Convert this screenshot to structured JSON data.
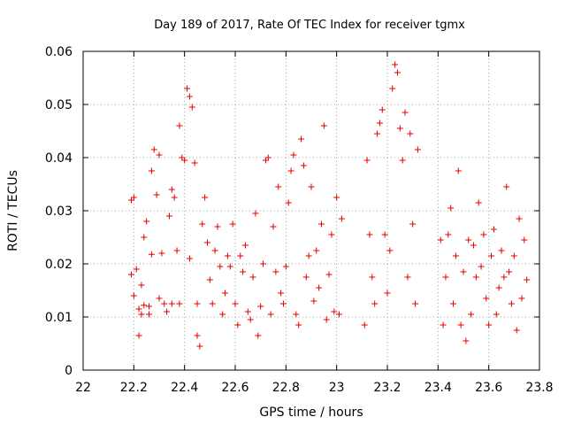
{
  "chart_data": {
    "type": "scatter",
    "title": "Day 189 of 2017, Rate Of TEC Index for receiver tgmx",
    "xlabel": "GPS time / hours",
    "ylabel": "ROTI / TECUs",
    "xlim": [
      22,
      23.8
    ],
    "ylim": [
      0,
      0.06
    ],
    "xticks": [
      "22",
      "22.2",
      "22.4",
      "22.6",
      "22.8",
      "23",
      "23.2",
      "23.4",
      "23.6",
      "23.8"
    ],
    "yticks": [
      "0",
      "0.01",
      "0.02",
      "0.03",
      "0.04",
      "0.05",
      "0.06"
    ],
    "grid": true,
    "marker": "+",
    "color": "#e00000",
    "series": [
      {
        "points": [
          [
            22.19,
            0.018
          ],
          [
            22.19,
            0.032
          ],
          [
            22.2,
            0.0325
          ],
          [
            22.2,
            0.014
          ],
          [
            22.21,
            0.019
          ],
          [
            22.22,
            0.0065
          ],
          [
            22.22,
            0.0115
          ],
          [
            22.23,
            0.0105
          ],
          [
            22.23,
            0.016
          ],
          [
            22.24,
            0.025
          ],
          [
            22.24,
            0.0122
          ],
          [
            22.25,
            0.028
          ],
          [
            22.26,
            0.012
          ],
          [
            22.26,
            0.0105
          ],
          [
            22.27,
            0.0375
          ],
          [
            22.27,
            0.0218
          ],
          [
            22.28,
            0.0415
          ],
          [
            22.29,
            0.033
          ],
          [
            22.3,
            0.0405
          ],
          [
            22.3,
            0.0135
          ],
          [
            22.31,
            0.022
          ],
          [
            22.32,
            0.0125
          ],
          [
            22.33,
            0.011
          ],
          [
            22.34,
            0.029
          ],
          [
            22.35,
            0.034
          ],
          [
            22.35,
            0.0125
          ],
          [
            22.36,
            0.0325
          ],
          [
            22.37,
            0.0225
          ],
          [
            22.38,
            0.046
          ],
          [
            22.38,
            0.0125
          ],
          [
            22.39,
            0.04
          ],
          [
            22.4,
            0.0395
          ],
          [
            22.41,
            0.053
          ],
          [
            22.42,
            0.0515
          ],
          [
            22.42,
            0.021
          ],
          [
            22.43,
            0.0495
          ],
          [
            22.44,
            0.039
          ],
          [
            22.45,
            0.0125
          ],
          [
            22.45,
            0.0065
          ],
          [
            22.46,
            0.0045
          ],
          [
            22.47,
            0.0275
          ],
          [
            22.48,
            0.0325
          ],
          [
            22.49,
            0.024
          ],
          [
            22.5,
            0.017
          ],
          [
            22.51,
            0.0125
          ],
          [
            22.52,
            0.0225
          ],
          [
            22.53,
            0.027
          ],
          [
            22.54,
            0.0195
          ],
          [
            22.55,
            0.0105
          ],
          [
            22.56,
            0.0145
          ],
          [
            22.57,
            0.0215
          ],
          [
            22.58,
            0.0195
          ],
          [
            22.59,
            0.0275
          ],
          [
            22.6,
            0.0125
          ],
          [
            22.61,
            0.0085
          ],
          [
            22.62,
            0.0215
          ],
          [
            22.63,
            0.0185
          ],
          [
            22.64,
            0.0235
          ],
          [
            22.65,
            0.011
          ],
          [
            22.66,
            0.0095
          ],
          [
            22.67,
            0.0175
          ],
          [
            22.68,
            0.0295
          ],
          [
            22.69,
            0.0065
          ],
          [
            22.7,
            0.012
          ],
          [
            22.71,
            0.02
          ],
          [
            22.72,
            0.0395
          ],
          [
            22.73,
            0.04
          ],
          [
            22.74,
            0.0105
          ],
          [
            22.75,
            0.027
          ],
          [
            22.76,
            0.0185
          ],
          [
            22.77,
            0.0345
          ],
          [
            22.78,
            0.0145
          ],
          [
            22.79,
            0.0125
          ],
          [
            22.8,
            0.0195
          ],
          [
            22.81,
            0.0315
          ],
          [
            22.82,
            0.0375
          ],
          [
            22.83,
            0.0405
          ],
          [
            22.84,
            0.0105
          ],
          [
            22.85,
            0.0085
          ],
          [
            22.86,
            0.0435
          ],
          [
            22.87,
            0.0385
          ],
          [
            22.88,
            0.0175
          ],
          [
            22.89,
            0.0215
          ],
          [
            22.9,
            0.0345
          ],
          [
            22.91,
            0.013
          ],
          [
            22.92,
            0.0225
          ],
          [
            22.93,
            0.0155
          ],
          [
            22.94,
            0.0275
          ],
          [
            22.95,
            0.046
          ],
          [
            22.96,
            0.0095
          ],
          [
            22.97,
            0.018
          ],
          [
            22.98,
            0.0255
          ],
          [
            22.99,
            0.011
          ],
          [
            23.0,
            0.0325
          ],
          [
            23.01,
            0.0105
          ],
          [
            23.02,
            0.0285
          ],
          [
            23.11,
            0.0085
          ],
          [
            23.12,
            0.0395
          ],
          [
            23.13,
            0.0255
          ],
          [
            23.14,
            0.0175
          ],
          [
            23.15,
            0.0125
          ],
          [
            23.16,
            0.0445
          ],
          [
            23.17,
            0.0465
          ],
          [
            23.18,
            0.049
          ],
          [
            23.19,
            0.0255
          ],
          [
            23.2,
            0.0145
          ],
          [
            23.21,
            0.0225
          ],
          [
            23.22,
            0.053
          ],
          [
            23.23,
            0.0575
          ],
          [
            23.24,
            0.056
          ],
          [
            23.25,
            0.0455
          ],
          [
            23.26,
            0.0395
          ],
          [
            23.27,
            0.0485
          ],
          [
            23.28,
            0.0175
          ],
          [
            23.29,
            0.0445
          ],
          [
            23.3,
            0.0275
          ],
          [
            23.31,
            0.0125
          ],
          [
            23.32,
            0.0415
          ],
          [
            23.41,
            0.0245
          ],
          [
            23.42,
            0.0085
          ],
          [
            23.43,
            0.0175
          ],
          [
            23.44,
            0.0255
          ],
          [
            23.45,
            0.0305
          ],
          [
            23.46,
            0.0125
          ],
          [
            23.47,
            0.0215
          ],
          [
            23.48,
            0.0375
          ],
          [
            23.49,
            0.0085
          ],
          [
            23.5,
            0.0185
          ],
          [
            23.51,
            0.0055
          ],
          [
            23.52,
            0.0245
          ],
          [
            23.53,
            0.0105
          ],
          [
            23.54,
            0.0235
          ],
          [
            23.55,
            0.0175
          ],
          [
            23.56,
            0.0315
          ],
          [
            23.57,
            0.0195
          ],
          [
            23.58,
            0.0255
          ],
          [
            23.59,
            0.0135
          ],
          [
            23.6,
            0.0085
          ],
          [
            23.61,
            0.0215
          ],
          [
            23.62,
            0.0265
          ],
          [
            23.63,
            0.0105
          ],
          [
            23.64,
            0.0155
          ],
          [
            23.65,
            0.0225
          ],
          [
            23.66,
            0.0175
          ],
          [
            23.67,
            0.0345
          ],
          [
            23.68,
            0.0185
          ],
          [
            23.69,
            0.0125
          ],
          [
            23.7,
            0.0215
          ],
          [
            23.71,
            0.0075
          ],
          [
            23.72,
            0.0285
          ],
          [
            23.73,
            0.0135
          ],
          [
            23.74,
            0.0245
          ],
          [
            23.75,
            0.017
          ]
        ]
      }
    ]
  }
}
